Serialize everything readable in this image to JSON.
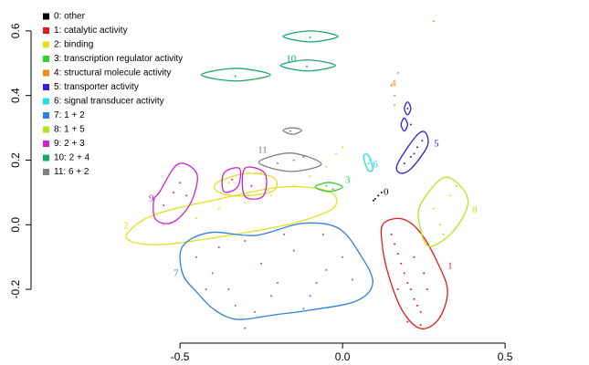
{
  "chart_data": {
    "type": "scatter",
    "xlim": [
      -0.947,
      0.744
    ],
    "ylim": [
      -0.355,
      0.673
    ],
    "xticks": [
      -0.5,
      {
        "value": 0,
        "label": "0.0"
      },
      0.5
    ],
    "yticks": [
      -0.2,
      {
        "value": 0,
        "label": "0.0"
      },
      0.2,
      0.4,
      0.6
    ],
    "legend": "top-left",
    "series": [
      {
        "name": "0: other",
        "color": "#000000",
        "label": "0",
        "label_x": 0.126,
        "label_y": 0.1,
        "x": [
          0.1,
          0.11,
          0.12,
          0.095
        ],
        "y": [
          0.08,
          0.09,
          0.1,
          0.075
        ],
        "contours": []
      },
      {
        "name": "1: catalytic activity",
        "color": "#e31a1c",
        "label": "1",
        "label_x": 0.323,
        "label_y": -0.129,
        "x": [
          0.15,
          0.16,
          0.17,
          0.18,
          0.19,
          0.2,
          0.21,
          0.22,
          0.23,
          0.24,
          0.25,
          0.26,
          0.17,
          0.22,
          0.2,
          0.24
        ],
        "y": [
          -0.03,
          -0.06,
          -0.09,
          -0.12,
          -0.15,
          -0.18,
          -0.2,
          -0.23,
          -0.25,
          -0.27,
          -0.15,
          -0.2,
          -0.2,
          -0.1,
          -0.3,
          -0.31
        ],
        "contours": [
          {
            "x": [
              0.126,
              0.183,
              0.239,
              0.295,
              0.323,
              0.295,
              0.239,
              0.183,
              0.14,
              0.121
            ],
            "y": [
              0.004,
              0.018,
              -0.024,
              -0.123,
              -0.208,
              -0.293,
              -0.321,
              -0.264,
              -0.151,
              -0.053
            ]
          }
        ]
      },
      {
        "name": "2: binding",
        "color": "#e0e020",
        "label": "2",
        "label_x": -0.674,
        "label_y": -0.005,
        "x": [
          -0.55,
          -0.45,
          -0.38,
          -0.3,
          -0.22,
          -0.15,
          -0.1,
          -0.05,
          -0.35,
          -0.25,
          -0.02,
          0.0
        ],
        "y": [
          0.0,
          0.02,
          0.05,
          0.07,
          0.09,
          0.12,
          0.15,
          0.18,
          0.13,
          0.16,
          0.22,
          0.24
        ],
        "contours": [
          {
            "x": [
              -0.66,
              -0.576,
              -0.379,
              -0.183,
              -0.042,
              -0.028,
              -0.154,
              -0.351,
              -0.548,
              -0.646
            ],
            "y": [
              -0.024,
              0.032,
              0.08,
              0.117,
              0.103,
              0.052,
              0.004,
              -0.033,
              -0.061,
              -0.053
            ]
          },
          {
            "x": [
              -0.385,
              -0.295,
              -0.211,
              -0.216,
              -0.323,
              -0.385
            ],
            "y": [
              0.131,
              0.159,
              0.145,
              0.103,
              0.089,
              0.103
            ]
          }
        ]
      },
      {
        "name": "3: transcription regulator activity",
        "color": "#33cc33",
        "label": "3",
        "label_x": 0.008,
        "label_y": 0.137,
        "x": [
          -0.05,
          -0.03
        ],
        "y": [
          0.12,
          0.11
        ],
        "contours": [
          {
            "x": [
              -0.084,
              -0.042,
              0.0,
              -0.042
            ],
            "y": [
              0.117,
              0.131,
              0.117,
              0.103
            ]
          }
        ]
      },
      {
        "name": "4: structural molecule activity",
        "color": "#f08c1e",
        "label": "4",
        "label_x": 0.149,
        "label_y": 0.436,
        "x": [
          0.15,
          0.16,
          0.17,
          0.16,
          0.28
        ],
        "y": [
          0.43,
          0.4,
          0.47,
          0.37,
          0.63
        ],
        "contours": []
      },
      {
        "name": "5: transporter activity",
        "color": "#2e1fd6",
        "label": "5",
        "label_x": 0.281,
        "label_y": 0.25,
        "x": [
          0.19,
          0.21,
          0.22,
          0.23,
          0.245,
          0.2,
          0.21
        ],
        "y": [
          0.19,
          0.21,
          0.22,
          0.24,
          0.26,
          0.36,
          0.31
        ],
        "contours": [
          {
            "x": [
              0.169,
              0.225,
              0.253,
              0.261,
              0.211,
              0.177
            ],
            "y": [
              0.188,
              0.273,
              0.287,
              0.244,
              0.174,
              0.16
            ]
          },
          {
            "x": [
              0.19,
              0.2,
              0.21,
              0.2
            ],
            "y": [
              0.36,
              0.38,
              0.36,
              0.34
            ]
          },
          {
            "x": [
              0.18,
              0.19,
              0.2,
              0.19
            ],
            "y": [
              0.31,
              0.33,
              0.31,
              0.29
            ]
          }
        ]
      },
      {
        "name": "6:  signal transducer activity",
        "color": "#22dede",
        "label": "6",
        "label_x": 0.093,
        "label_y": 0.185,
        "x": [
          0.08,
          0.085
        ],
        "y": [
          0.19,
          0.2
        ],
        "contours": [
          {
            "x": [
              0.065,
              0.079,
              0.093,
              0.079
            ],
            "y": [
              0.21,
              0.216,
              0.174,
              0.168
            ]
          }
        ]
      },
      {
        "name": "7: 1 + 2",
        "color": "#2f7fe0",
        "label": "7",
        "label_x": -0.52,
        "label_y": -0.151,
        "x": [
          -0.45,
          -0.4,
          -0.35,
          -0.3,
          -0.25,
          -0.2,
          -0.15,
          -0.1,
          -0.05,
          0.0,
          -0.42,
          -0.33,
          -0.27,
          -0.18,
          -0.12,
          -0.06,
          -0.38,
          -0.22,
          -0.08,
          0.03,
          -0.3
        ],
        "y": [
          -0.1,
          -0.15,
          -0.2,
          -0.05,
          -0.12,
          -0.18,
          -0.08,
          -0.22,
          -0.14,
          -0.1,
          -0.2,
          -0.25,
          -0.27,
          -0.03,
          -0.26,
          -0.03,
          -0.07,
          -0.22,
          -0.18,
          -0.17,
          -0.32
        ],
        "contours": [
          {
            "x": [
              -0.492,
              -0.407,
              -0.267,
              -0.126,
              -0.014,
              0.056,
              0.093,
              0.042,
              -0.098,
              -0.211,
              -0.323,
              -0.393,
              -0.449,
              -0.492
            ],
            "y": [
              -0.067,
              -0.024,
              -0.033,
              0.004,
              -0.01,
              -0.095,
              -0.18,
              -0.236,
              -0.264,
              -0.279,
              -0.293,
              -0.264,
              -0.208,
              -0.151
            ]
          }
        ]
      },
      {
        "name": "8: 1 + 5",
        "color": "#b5e61d",
        "label": "8",
        "label_x": 0.399,
        "label_y": 0.044,
        "x": [
          0.28,
          0.3,
          0.33,
          0.35,
          0.31
        ],
        "y": [
          0.05,
          0.0,
          0.09,
          0.12,
          -0.03
        ],
        "contours": [
          {
            "x": [
              0.239,
              0.309,
              0.365,
              0.385,
              0.337,
              0.267,
              0.239
            ],
            "y": [
              0.06,
              0.145,
              0.117,
              0.06,
              -0.024,
              -0.067,
              -0.01
            ]
          }
        ]
      },
      {
        "name": "9: 2 + 3",
        "color": "#cc22cc",
        "label": "9",
        "label_x": -0.596,
        "label_y": 0.08,
        "x": [
          -0.55,
          -0.52,
          -0.5,
          -0.48,
          -0.34,
          -0.28
        ],
        "y": [
          0.06,
          0.1,
          0.13,
          0.09,
          0.14,
          0.12
        ],
        "contours": [
          {
            "x": [
              -0.562,
              -0.506,
              -0.449,
              -0.458,
              -0.492,
              -0.534,
              -0.576,
              -0.581
            ],
            "y": [
              0.103,
              0.188,
              0.16,
              0.089,
              0.032,
              0.004,
              0.018,
              0.075
            ]
          },
          {
            "x": [
              -0.365,
              -0.317,
              -0.323,
              -0.365
            ],
            "y": [
              0.16,
              0.174,
              0.117,
              0.103
            ]
          },
          {
            "x": [
              -0.301,
              -0.239,
              -0.244,
              -0.301
            ],
            "y": [
              0.174,
              0.159,
              0.089,
              0.089
            ]
          }
        ]
      },
      {
        "name": "10: 2 + 4",
        "color": "#1aa866",
        "label": "10",
        "label_x": -0.174,
        "label_y": 0.512,
        "x": [
          -0.1,
          -0.11,
          -0.33
        ],
        "y": [
          0.58,
          0.49,
          0.46
        ],
        "contours": [
          {
            "x": [
              -0.183,
              -0.098,
              -0.014,
              -0.098
            ],
            "y": [
              0.583,
              0.6,
              0.583,
              0.566
            ]
          },
          {
            "x": [
              -0.191,
              -0.107,
              -0.022,
              -0.107
            ],
            "y": [
              0.493,
              0.51,
              0.493,
              0.476
            ]
          },
          {
            "x": [
              -0.435,
              -0.329,
              -0.222,
              -0.329
            ],
            "y": [
              0.464,
              0.484,
              0.464,
              0.445
            ]
          }
        ]
      },
      {
        "name": "11: 6 + 2",
        "color": "#808080",
        "label": "11",
        "label_x": -0.261,
        "label_y": 0.23,
        "x": [
          -0.2,
          -0.15,
          -0.12,
          -0.16
        ],
        "y": [
          0.19,
          0.2,
          0.21,
          0.29
        ],
        "contours": [
          {
            "x": [
              -0.258,
              -0.16,
              -0.065,
              -0.16
            ],
            "y": [
              0.193,
              0.222,
              0.188,
              0.165
            ]
          },
          {
            "x": [
              -0.183,
              -0.154,
              -0.126,
              -0.154
            ],
            "y": [
              0.292,
              0.3,
              0.292,
              0.28
            ]
          }
        ]
      }
    ]
  }
}
